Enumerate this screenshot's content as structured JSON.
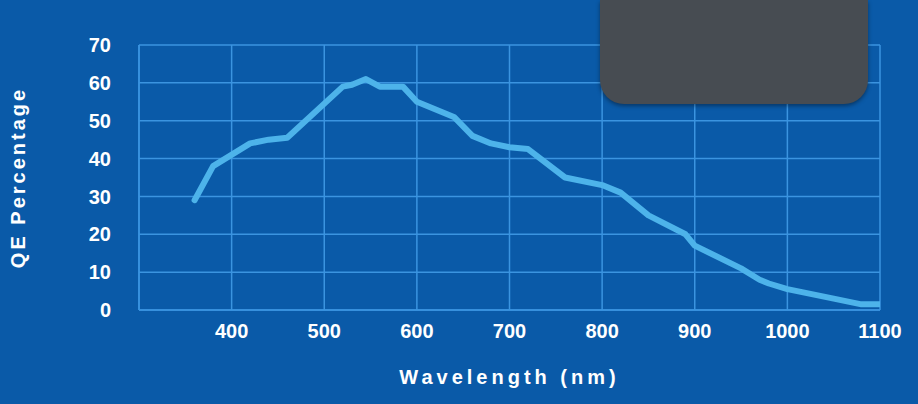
{
  "chart_data": {
    "type": "line",
    "x_label": "Wavelength (nm)",
    "y_label": "QE Percentage",
    "x": [
      360,
      380,
      420,
      440,
      460,
      520,
      530,
      545,
      560,
      585,
      600,
      640,
      660,
      680,
      700,
      720,
      760,
      800,
      820,
      850,
      890,
      900,
      950,
      970,
      980,
      1000,
      1050,
      1080,
      1100
    ],
    "values": [
      29,
      38,
      44,
      45,
      45.5,
      59,
      59.5,
      61,
      59,
      59,
      55,
      51,
      46,
      44,
      43,
      42.5,
      35,
      33,
      31,
      25,
      20,
      17,
      11,
      8,
      7,
      5.5,
      3,
      1.5,
      1.5
    ],
    "color": "#4db3ea",
    "xlim": [
      300,
      1100
    ],
    "xticks": [
      400,
      500,
      600,
      700,
      800,
      900,
      1000,
      1100
    ],
    "ylim": [
      0,
      70
    ],
    "yticks": [
      0,
      10,
      20,
      30,
      40,
      50,
      60,
      70
    ],
    "grid": true
  }
}
